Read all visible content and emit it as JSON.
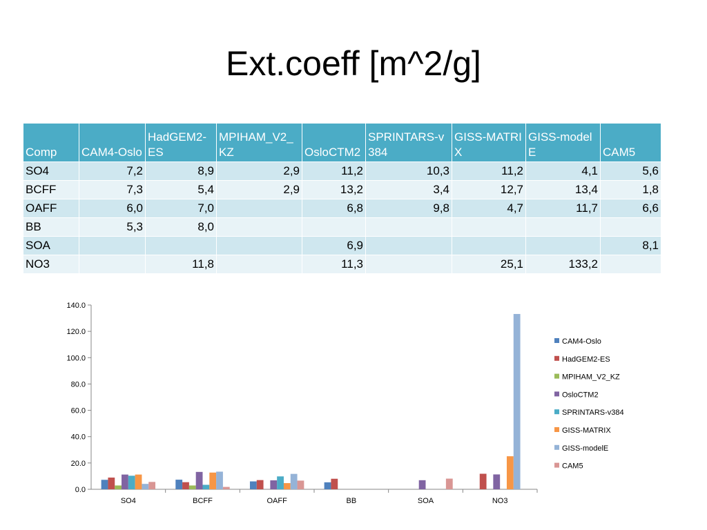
{
  "title": "Ext.coeff [m^2/g]",
  "table": {
    "headers": [
      "Comp",
      "CAM4-Oslo",
      "HadGEM2-ES",
      "MPIHAM_V2_KZ",
      "OsloCTM2",
      "SPRINTARS-v384",
      "GISS-MATRIX",
      "GISS-modelE",
      "CAM5"
    ],
    "rows": [
      {
        "label": "SO4",
        "cells": [
          "7,2",
          "8,9",
          "2,9",
          "11,2",
          "10,3",
          "11,2",
          "4,1",
          "5,6"
        ]
      },
      {
        "label": "BCFF",
        "cells": [
          "7,3",
          "5,4",
          "2,9",
          "13,2",
          "3,4",
          "12,7",
          "13,4",
          "1,8"
        ]
      },
      {
        "label": "OAFF",
        "cells": [
          "6,0",
          "7,0",
          "",
          "6,8",
          "9,8",
          "4,7",
          "11,7",
          "6,6"
        ]
      },
      {
        "label": "BB",
        "cells": [
          "5,3",
          "8,0",
          "",
          "",
          "",
          "",
          "",
          ""
        ]
      },
      {
        "label": "SOA",
        "cells": [
          "",
          "",
          "",
          "6,9",
          "",
          "",
          "",
          "8,1"
        ]
      },
      {
        "label": "NO3",
        "cells": [
          "",
          "11,8",
          "",
          "11,3",
          "",
          "25,1",
          "133,2",
          ""
        ]
      }
    ]
  },
  "chart_data": {
    "type": "bar",
    "categories": [
      "SO4",
      "BCFF",
      "OAFF",
      "BB",
      "SOA",
      "NO3"
    ],
    "ylim": [
      0,
      140
    ],
    "yticks": [
      "0.0",
      "20.0",
      "40.0",
      "60.0",
      "80.0",
      "100.0",
      "120.0",
      "140.0"
    ],
    "grid": false,
    "legend_position": "right",
    "series": [
      {
        "name": "CAM4-Oslo",
        "color": "#4f81bd",
        "values": [
          7.2,
          7.3,
          6.0,
          5.3,
          null,
          null
        ]
      },
      {
        "name": "HadGEM2-ES",
        "color": "#c0504d",
        "values": [
          8.9,
          5.4,
          7.0,
          8.0,
          null,
          11.8
        ]
      },
      {
        "name": "MPIHAM_V2_KZ",
        "color": "#9bbb59",
        "values": [
          2.9,
          2.9,
          null,
          null,
          null,
          null
        ]
      },
      {
        "name": "OsloCTM2",
        "color": "#8064a2",
        "values": [
          11.2,
          13.2,
          6.8,
          null,
          6.9,
          11.3
        ]
      },
      {
        "name": "SPRINTARS-v384",
        "color": "#4bacc6",
        "values": [
          10.3,
          3.4,
          9.8,
          null,
          null,
          null
        ]
      },
      {
        "name": "GISS-MATRIX",
        "color": "#f79646",
        "values": [
          11.2,
          12.7,
          4.7,
          null,
          null,
          25.1
        ]
      },
      {
        "name": "GISS-modelE",
        "color": "#95b3d7",
        "values": [
          4.1,
          13.4,
          11.7,
          null,
          null,
          133.2
        ]
      },
      {
        "name": "CAM5",
        "color": "#d99694",
        "values": [
          5.6,
          1.8,
          6.6,
          null,
          8.1,
          null
        ]
      }
    ]
  }
}
